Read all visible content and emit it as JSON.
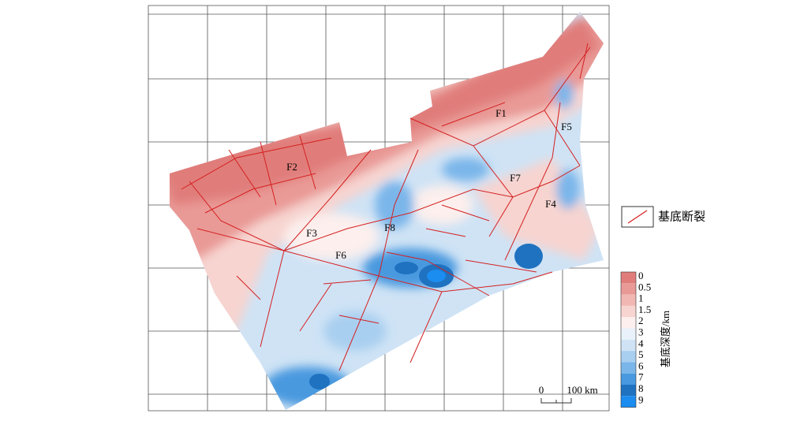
{
  "legend": {
    "label": "基底断裂"
  },
  "faults": [
    {
      "label": "F1"
    },
    {
      "label": "F2"
    },
    {
      "label": "F3"
    },
    {
      "label": "F4"
    },
    {
      "label": "F5"
    },
    {
      "label": "F6"
    },
    {
      "label": "F7"
    },
    {
      "label": "F8"
    }
  ],
  "colorbar": {
    "title": "基底深度/km",
    "levels": [
      {
        "value": 0,
        "color": "#e07d7a"
      },
      {
        "value": 0.5,
        "color": "#e99a96"
      },
      {
        "value": 1,
        "color": "#f1b7b3"
      },
      {
        "value": 1.5,
        "color": "#f7d4d0"
      },
      {
        "value": 2,
        "color": "#fcefed"
      },
      {
        "value": 3,
        "color": "#e9f2fa"
      },
      {
        "value": 4,
        "color": "#cfe3f5"
      },
      {
        "value": 5,
        "color": "#a9cff0"
      },
      {
        "value": 6,
        "color": "#7ab6ea"
      },
      {
        "value": 7,
        "color": "#4899df"
      },
      {
        "value": 8,
        "color": "#1f72c0"
      },
      {
        "value": 9,
        "color": "#1b8cf0"
      }
    ]
  },
  "scale": {
    "start": "0",
    "end": "100 km"
  }
}
